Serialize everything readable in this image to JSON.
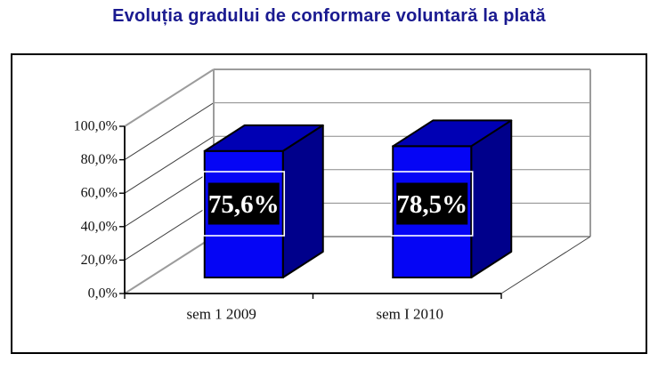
{
  "chart_data": {
    "type": "bar",
    "projection": "3d",
    "title": "Evoluția gradului de conformare voluntară la plată",
    "categories": [
      "sem 1 2009",
      "sem I 2010"
    ],
    "values": [
      75.6,
      78.5
    ],
    "data_labels": [
      "75,6%",
      "78,5%"
    ],
    "y_ticks": [
      "100,0%",
      "80,0%",
      "60,0%",
      "40,0%",
      "20,0%",
      "0,0%"
    ],
    "ylim": [
      0,
      100
    ],
    "y_step": 20,
    "xlabel": "",
    "ylabel": "",
    "legend": false,
    "grid": true,
    "colors": {
      "title": "#1a1a90",
      "bar_front": "#0505f5",
      "bar_side": "#00008b",
      "bar_top": "#0000b4",
      "bar_outline": "#000000",
      "label_bg": "#000000",
      "label_border": "#ffffff",
      "label_text": "#ffffff",
      "wall_edge": "#9c9c9c",
      "grid_diagonal": "#404040",
      "grid_horizontal": "#8a8a8a",
      "axis": "#000000",
      "tick_text": "#111111"
    }
  }
}
